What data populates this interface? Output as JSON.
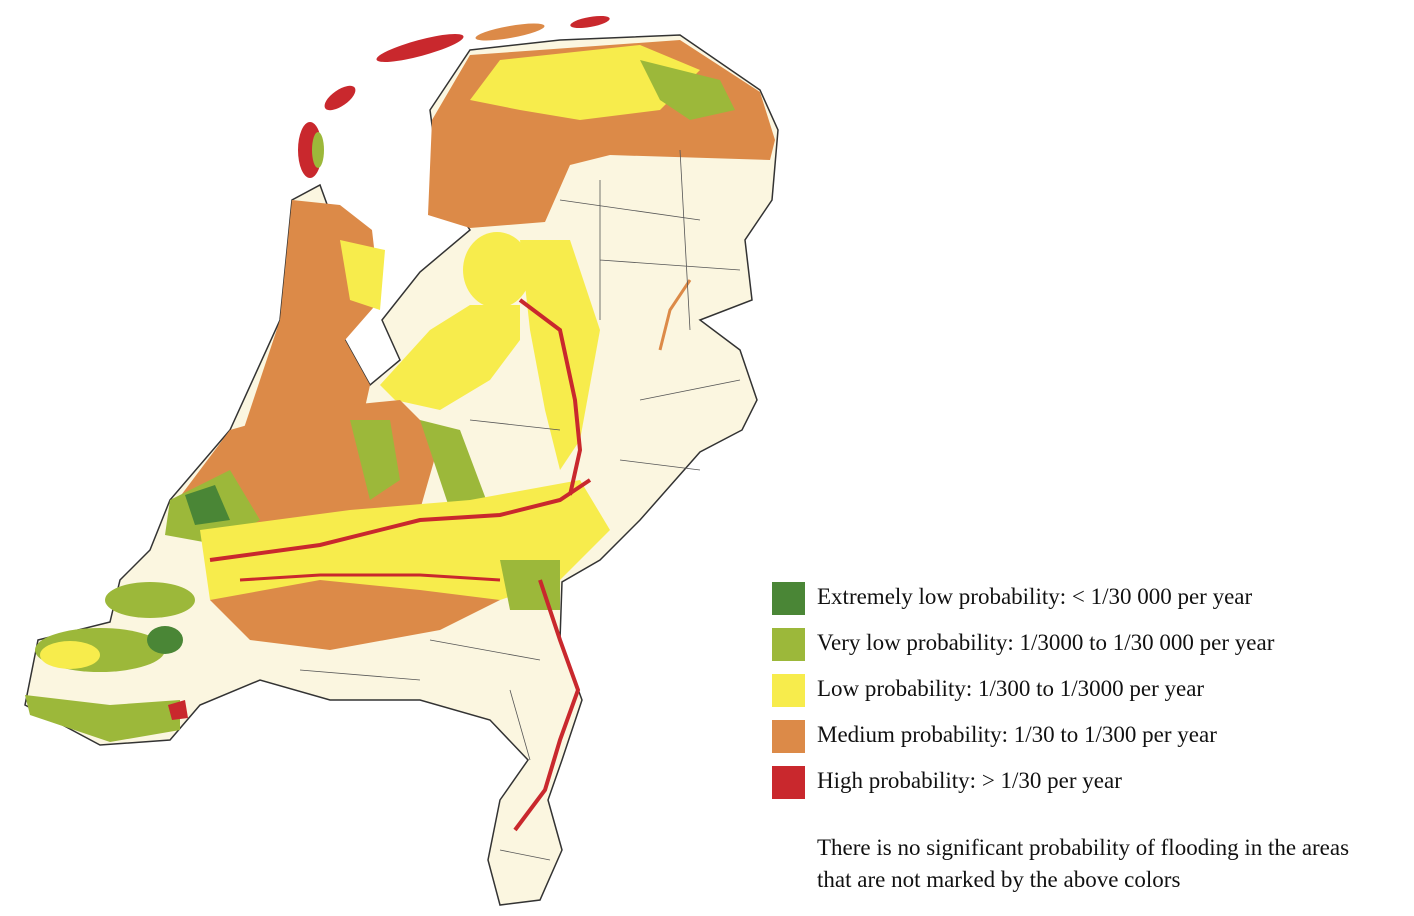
{
  "legend": {
    "items": [
      {
        "label": "Extremely low probability: < 1/30 000 per year",
        "color": "#4a8636"
      },
      {
        "label": "Very low probability: 1/3000 to 1/30 000 per year",
        "color": "#9cb83a"
      },
      {
        "label": "Low probability: 1/300 to 1/3000 per year",
        "color": "#f7ec4c"
      },
      {
        "label": "Medium probability: 1/30 to 1/300 per year",
        "color": "#dc8a48"
      },
      {
        "label": "High probability: > 1/30 per year",
        "color": "#c9282d"
      }
    ]
  },
  "note": "There is no significant probability of flooding in the areas that are not marked by the above colors"
}
